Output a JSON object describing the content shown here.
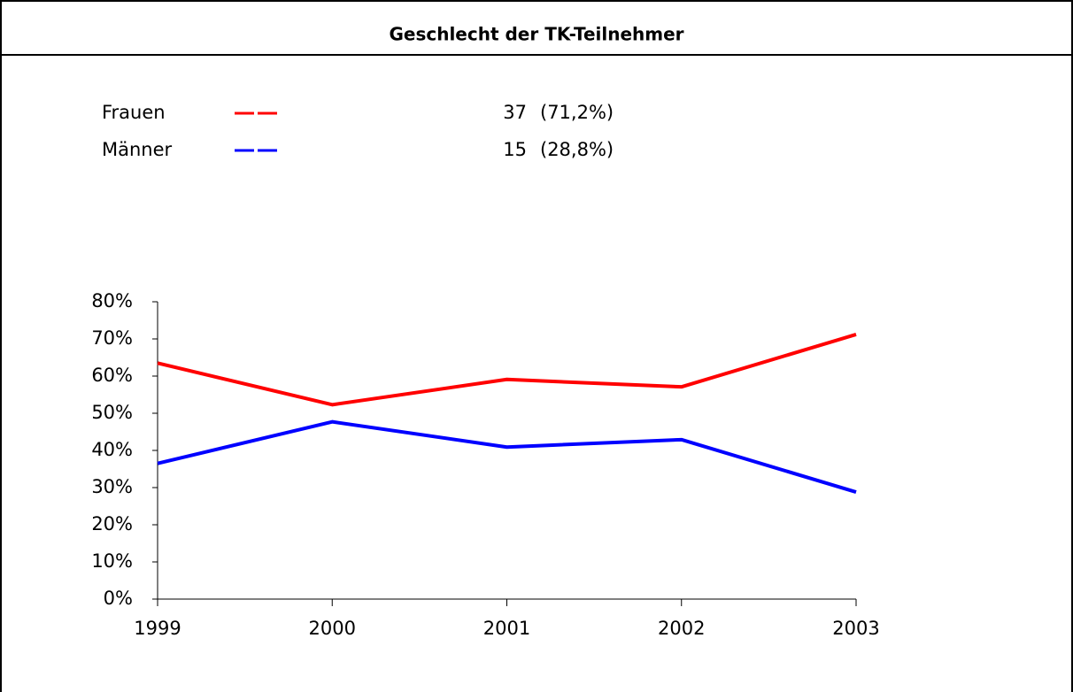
{
  "chart_data": {
    "type": "line",
    "title": "Geschlecht der TK-Teilnehmer",
    "categories": [
      "1999",
      "2000",
      "2001",
      "2002",
      "2003"
    ],
    "series": [
      {
        "name": "Frauen",
        "color": "#ff0000",
        "values": [
          63.5,
          52.3,
          59.1,
          57.1,
          71.2
        ],
        "total": 37,
        "total_share": {
          "value": 71.2,
          "label": "(71,2%)"
        }
      },
      {
        "name": "Männer",
        "color": "#0000ff",
        "values": [
          36.5,
          47.7,
          40.9,
          42.9,
          28.8
        ],
        "total": 15,
        "total_share": {
          "value": 28.8,
          "label": "(28,8%)"
        }
      }
    ],
    "ylim": [
      0,
      80
    ],
    "yticks": [
      {
        "value": 0,
        "label": "0%"
      },
      {
        "value": 10,
        "label": "10%"
      },
      {
        "value": 20,
        "label": "20%"
      },
      {
        "value": 30,
        "label": "30%"
      },
      {
        "value": 40,
        "label": "40%"
      },
      {
        "value": 50,
        "label": "50%"
      },
      {
        "value": 60,
        "label": "60%"
      },
      {
        "value": 70,
        "label": "70%"
      },
      {
        "value": 80,
        "label": "80%"
      }
    ],
    "grid": false
  }
}
